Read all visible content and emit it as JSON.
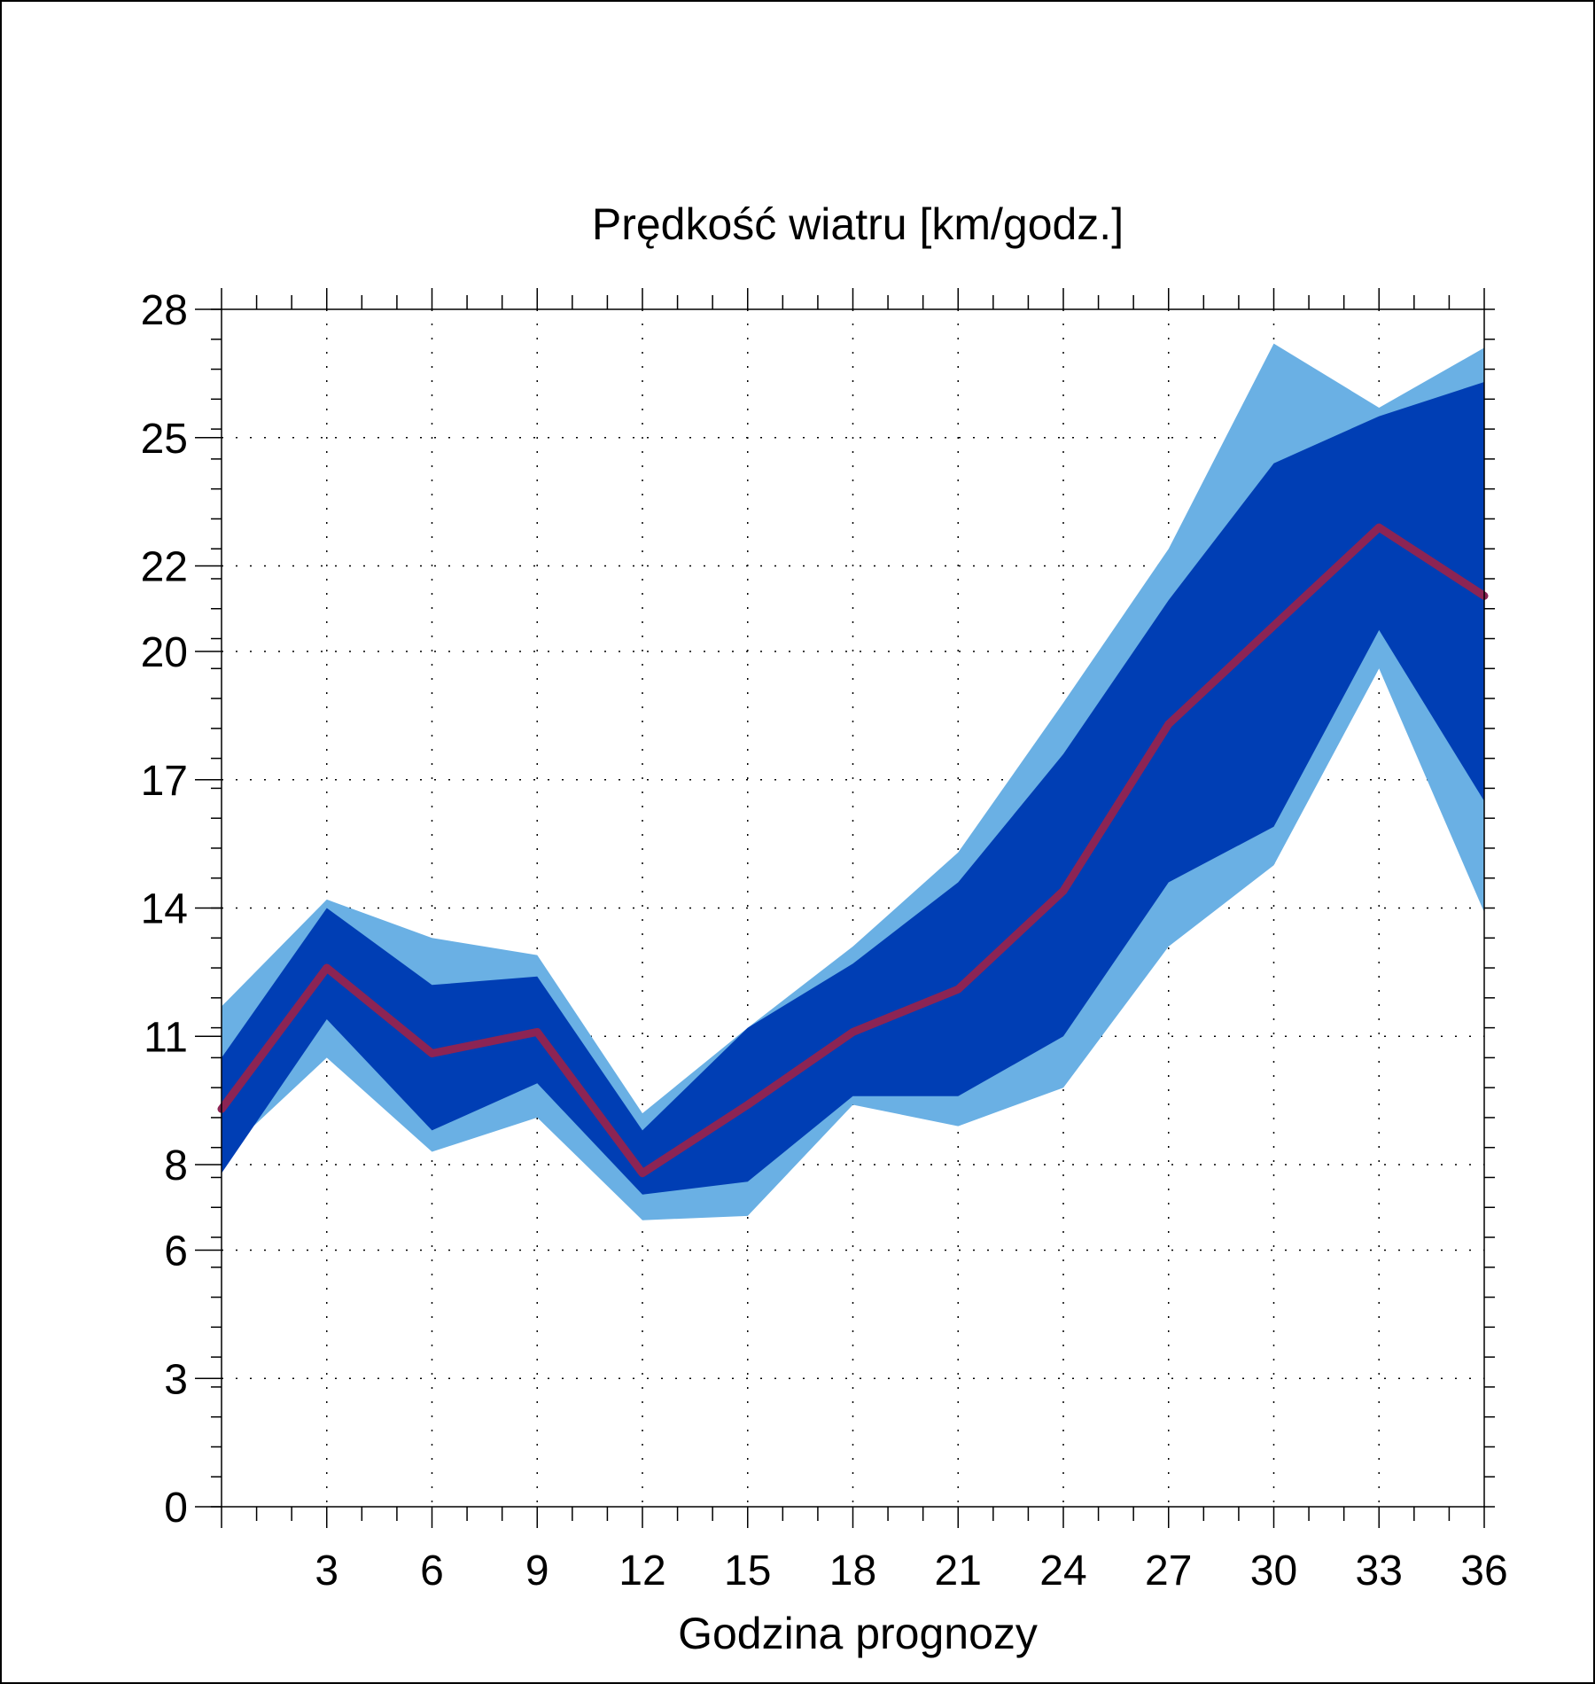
{
  "chart_data": {
    "type": "area",
    "title": "Prędkość wiatru [km/godz.]",
    "xlabel": "Godzina prognozy",
    "ylabel": "",
    "x": [
      0,
      3,
      6,
      9,
      12,
      15,
      18,
      21,
      24,
      27,
      30,
      33,
      36
    ],
    "xticks": [
      3,
      6,
      9,
      12,
      15,
      18,
      21,
      24,
      27,
      30,
      33,
      36
    ],
    "xlim": [
      0,
      36
    ],
    "yticks": [
      0,
      3,
      6,
      8,
      11,
      14,
      17,
      20,
      22,
      25,
      28
    ],
    "ylim": [
      0,
      28
    ],
    "grid": true,
    "outer_band": {
      "upper": [
        11.7,
        14.2,
        13.3,
        12.9,
        9.2,
        11.2,
        13.1,
        15.3,
        18.8,
        22.4,
        27.2,
        25.7,
        27.1
      ],
      "lower": [
        8.2,
        10.5,
        8.3,
        9.1,
        6.7,
        6.8,
        9.4,
        8.9,
        9.8,
        13.1,
        15.0,
        19.6,
        13.9
      ]
    },
    "inner_band": {
      "upper": [
        10.5,
        14.0,
        12.2,
        12.4,
        8.8,
        11.2,
        12.7,
        14.6,
        17.6,
        21.2,
        24.4,
        25.5,
        26.3
      ],
      "lower": [
        7.8,
        11.4,
        8.8,
        9.9,
        7.3,
        7.6,
        9.6,
        9.6,
        11.0,
        14.6,
        15.9,
        20.5,
        16.5
      ]
    },
    "median": [
      9.3,
      12.6,
      10.6,
      11.1,
      7.8,
      9.4,
      11.1,
      12.1,
      14.4,
      18.3,
      20.6,
      22.9,
      21.3
    ],
    "colors": {
      "outer_band": "#6ab0e4",
      "inner_band": "#003eb4",
      "median": "#8c2454",
      "grid": "#000000"
    }
  }
}
